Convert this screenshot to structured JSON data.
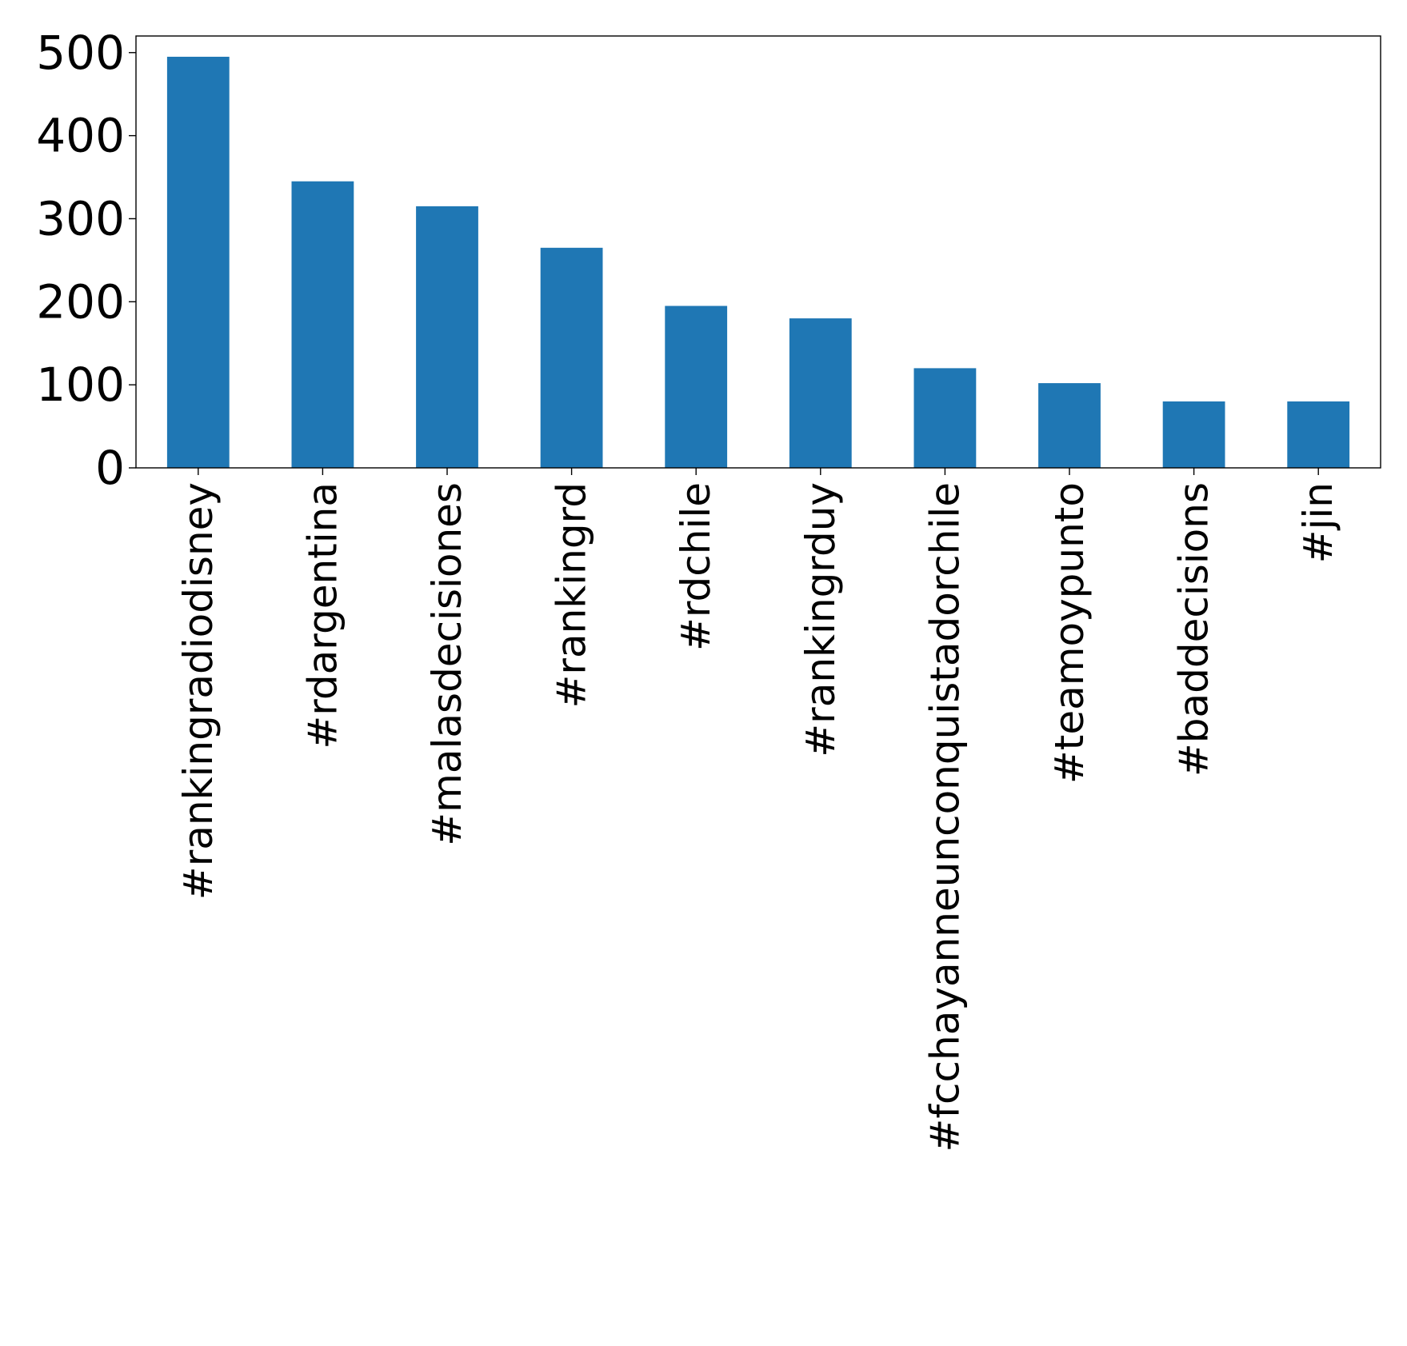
{
  "chart_data": {
    "type": "bar",
    "title": "",
    "xlabel": "",
    "ylabel": "",
    "categories": [
      "#rankingradiodisney",
      "#rdargentina",
      "#malasdecisiones",
      "#rankingrd",
      "#rdchile",
      "#rankingrduy",
      "#fcchayanneunconquistadorchile",
      "#teamoypunto",
      "#baddecisions",
      "#jin"
    ],
    "values": [
      495,
      345,
      315,
      265,
      195,
      180,
      120,
      102,
      80,
      80
    ],
    "ylim": [
      0,
      520
    ],
    "yticks": [
      0,
      100,
      200,
      300,
      400,
      500
    ],
    "bar_color": "#1f77b4",
    "grid": false,
    "legend": false
  }
}
